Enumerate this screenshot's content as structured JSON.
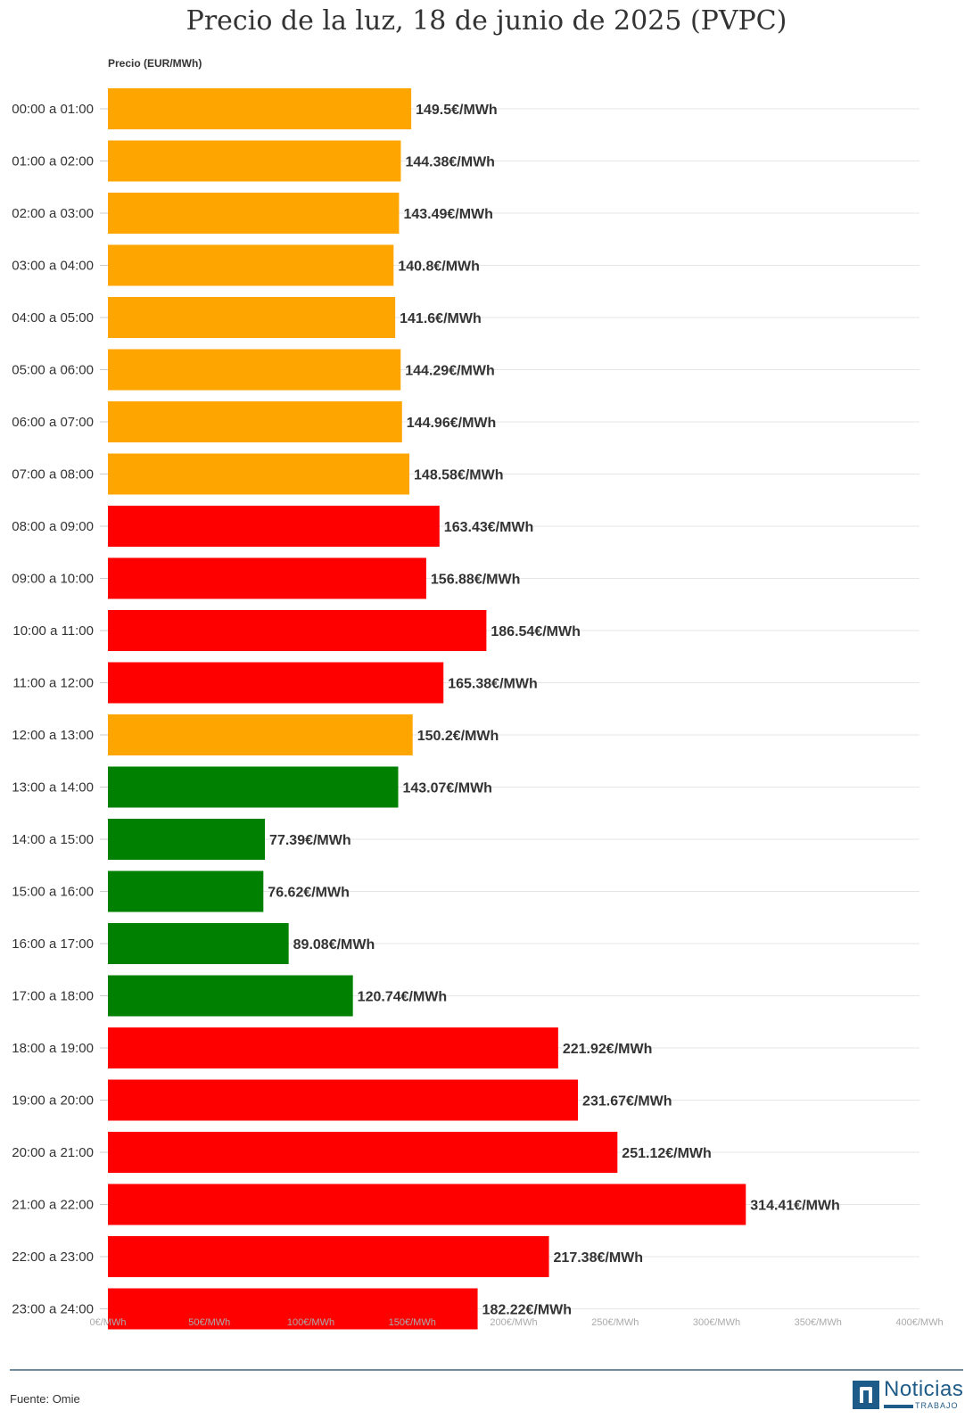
{
  "chart_data": {
    "type": "bar",
    "orientation": "horizontal",
    "title": "Precio de la luz, 18 de junio de 2025 (PVPC)",
    "ylabel": "Precio (EUR/MWh)",
    "xlim": [
      0,
      400
    ],
    "grid": true,
    "x_ticks": [
      0,
      50,
      100,
      150,
      200,
      250,
      300,
      350,
      400
    ],
    "x_tick_labels": [
      "0€/MWh",
      "50€/MWh",
      "100€/MWh",
      "150€/MWh",
      "200€/MWh",
      "250€/MWh",
      "300€/MWh",
      "350€/MWh",
      "400€/MWh"
    ],
    "categories": [
      "00:00 a 01:00",
      "01:00 a 02:00",
      "02:00 a 03:00",
      "03:00 a 04:00",
      "04:00 a 05:00",
      "05:00 a 06:00",
      "06:00 a 07:00",
      "07:00 a 08:00",
      "08:00 a 09:00",
      "09:00 a 10:00",
      "10:00 a 11:00",
      "11:00 a 12:00",
      "12:00 a 13:00",
      "13:00 a 14:00",
      "14:00 a 15:00",
      "15:00 a 16:00",
      "16:00 a 17:00",
      "17:00 a 18:00",
      "18:00 a 19:00",
      "19:00 a 20:00",
      "20:00 a 21:00",
      "21:00 a 22:00",
      "22:00 a 23:00",
      "23:00 a 24:00"
    ],
    "values": [
      149.5,
      144.38,
      143.49,
      140.8,
      141.6,
      144.29,
      144.96,
      148.58,
      163.43,
      156.88,
      186.54,
      165.38,
      150.2,
      143.07,
      77.39,
      76.62,
      89.08,
      120.74,
      221.92,
      231.67,
      251.12,
      314.41,
      217.38,
      182.22
    ],
    "value_labels": [
      "149.5€/MWh",
      "144.38€/MWh",
      "143.49€/MWh",
      "140.8€/MWh",
      "141.6€/MWh",
      "144.29€/MWh",
      "144.96€/MWh",
      "148.58€/MWh",
      "163.43€/MWh",
      "156.88€/MWh",
      "186.54€/MWh",
      "165.38€/MWh",
      "150.2€/MWh",
      "143.07€/MWh",
      "77.39€/MWh",
      "76.62€/MWh",
      "89.08€/MWh",
      "120.74€/MWh",
      "221.92€/MWh",
      "231.67€/MWh",
      "251.12€/MWh",
      "314.41€/MWh",
      "217.38€/MWh",
      "182.22€/MWh"
    ],
    "bar_colors": [
      "orange",
      "orange",
      "orange",
      "orange",
      "orange",
      "orange",
      "orange",
      "orange",
      "red",
      "red",
      "red",
      "red",
      "orange",
      "green",
      "green",
      "green",
      "green",
      "green",
      "red",
      "red",
      "red",
      "red",
      "red",
      "red"
    ],
    "palette": {
      "orange": "#ffa500",
      "red": "#ff0000",
      "green": "#008000",
      "grid": "#e6e6e6"
    }
  },
  "footer": {
    "source": "Fuente: Omie",
    "logo_name": "Noticias",
    "logo_sub": "TRABAJO"
  }
}
